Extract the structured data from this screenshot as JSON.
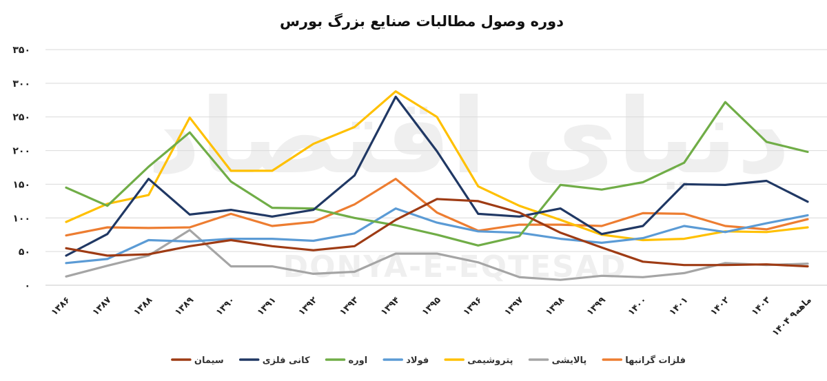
{
  "chart_data": {
    "type": "line",
    "title": "دوره وصول مطالبات صنایع بزرگ بورس",
    "xlabel": "",
    "ylabel": "",
    "ylim": [
      0,
      350
    ],
    "y_ticks": [
      {
        "value": 0,
        "label": "۰"
      },
      {
        "value": 50,
        "label": "۵۰"
      },
      {
        "value": 100,
        "label": "۱۰۰"
      },
      {
        "value": 150,
        "label": "۱۵۰"
      },
      {
        "value": 200,
        "label": "۲۰۰"
      },
      {
        "value": 250,
        "label": "۲۵۰"
      },
      {
        "value": 300,
        "label": "۳۰۰"
      },
      {
        "value": 350,
        "label": "۳۵۰"
      }
    ],
    "categories": [
      "۱۳۸۶",
      "۱۳۸۷",
      "۱۳۸۸",
      "۱۳۸۹",
      "۱۳۹۰",
      "۱۳۹۱",
      "۱۳۹۲",
      "۱۳۹۳",
      "۱۳۹۴",
      "۱۳۹۵",
      "۱۳۹۶",
      "۱۳۹۷",
      "۱۳۹۸",
      "۱۳۹۹",
      "۱۴۰۰",
      "۱۴۰۱",
      "۱۴۰۲",
      "۱۴۰۳",
      "۱۴۰۴ ۹ماهه"
    ],
    "grid": true,
    "legend_position": "bottom",
    "series": [
      {
        "name": "فلزات گرانبها",
        "color": "#ED7D31",
        "values": [
          74,
          86,
          85,
          86,
          106,
          88,
          94,
          120,
          158,
          108,
          81,
          90,
          90,
          88,
          107,
          106,
          88,
          83,
          98
        ]
      },
      {
        "name": "پالایشی",
        "color": "#A5A5A5",
        "values": [
          13,
          29,
          44,
          82,
          28,
          28,
          17,
          20,
          47,
          47,
          34,
          12,
          8,
          14,
          12,
          18,
          33,
          30,
          32
        ]
      },
      {
        "name": "پتروشیمی",
        "color": "#FFC000",
        "values": [
          94,
          121,
          134,
          249,
          170,
          170,
          210,
          235,
          288,
          250,
          147,
          118,
          97,
          75,
          67,
          69,
          80,
          79,
          86
        ]
      },
      {
        "name": "فولاد",
        "color": "#5B9BD5",
        "values": [
          33,
          39,
          67,
          65,
          69,
          69,
          66,
          77,
          114,
          93,
          80,
          78,
          69,
          63,
          70,
          88,
          79,
          92,
          104
        ]
      },
      {
        "name": "اوره",
        "color": "#70AD47",
        "values": [
          145,
          118,
          176,
          227,
          154,
          115,
          114,
          100,
          89,
          75,
          59,
          73,
          149,
          142,
          153,
          182,
          272,
          213,
          198
        ]
      },
      {
        "name": "کانی فلزی",
        "color": "#203864",
        "values": [
          44,
          76,
          158,
          105,
          112,
          102,
          112,
          163,
          280,
          199,
          106,
          102,
          114,
          76,
          88,
          150,
          149,
          155,
          124
        ]
      },
      {
        "name": "سیمان",
        "color": "#9E3B14",
        "values": [
          55,
          44,
          46,
          58,
          67,
          58,
          52,
          58,
          97,
          128,
          125,
          108,
          78,
          56,
          35,
          30,
          30,
          31,
          28
        ]
      }
    ]
  },
  "legend_order": [
    0,
    1,
    2,
    3,
    4,
    5,
    6
  ],
  "watermark": {
    "text_fa": "دنیای اقتصاد",
    "text_en": "DONYA-E-EQTESAD"
  }
}
